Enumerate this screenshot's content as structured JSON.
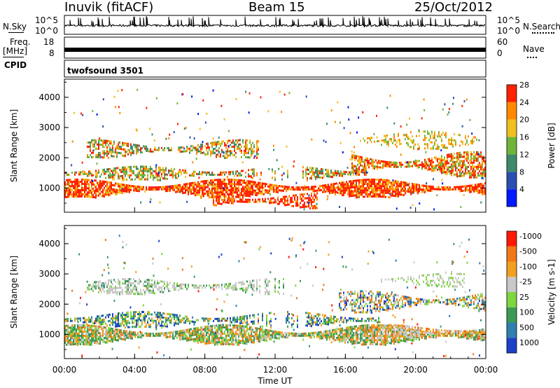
{
  "header": {
    "station": "Inuvik (fitACF)",
    "beam": "Beam 15",
    "date": "25/Oct/2012"
  },
  "side_labels": {
    "nsky": "N.Sky",
    "nsearch": "N.Search",
    "freq": "Freq.",
    "mhz": "[MHz]",
    "cpid": "CPID",
    "nave": "Nave"
  },
  "strip_ticks": {
    "noise_top": "10^5",
    "noise_bottom": "10^0",
    "freq_top": "18",
    "freq_bottom": "8",
    "nave_top": "60",
    "nave_bottom": "0"
  },
  "cpid_label": "twofsound 3501",
  "chart_data": [
    {
      "type": "heatmap",
      "panel": "power",
      "xlabel": "",
      "ylabel": "Slant Range [km]",
      "colorbar_label": "Power [dB]",
      "colorbar_ticks": [
        "4",
        "8",
        "12",
        "16",
        "20",
        "24",
        "28"
      ],
      "colorbar_colors": [
        "#0019ff",
        "#2b4fb0",
        "#3e8a6a",
        "#70b53a",
        "#f0c020",
        "#ff8a00",
        "#ff2000"
      ],
      "yticks": [
        "1000",
        "2000",
        "3000",
        "4000"
      ],
      "ylim": [
        200,
        4600
      ]
    },
    {
      "type": "heatmap",
      "panel": "velocity",
      "xlabel": "Time UT",
      "ylabel": "Slant Range [km]",
      "colorbar_label": "Velocity [m s-1]",
      "colorbar_ticks": [
        "1000",
        "500",
        "100",
        "25",
        "-25",
        "-100",
        "-500",
        "-1000"
      ],
      "colorbar_colors": [
        "#1e40c8",
        "#2f7fb0",
        "#3d9a55",
        "#7ed640",
        "#c8c8c8",
        "#f2a020",
        "#f07818",
        "#ff1800"
      ],
      "yticks": [
        "1000",
        "2000",
        "3000",
        "4000"
      ],
      "xticks": [
        "00:00",
        "04:00",
        "08:00",
        "12:00",
        "16:00",
        "20:00",
        "00:00"
      ],
      "ylim": [
        200,
        4600
      ]
    }
  ]
}
